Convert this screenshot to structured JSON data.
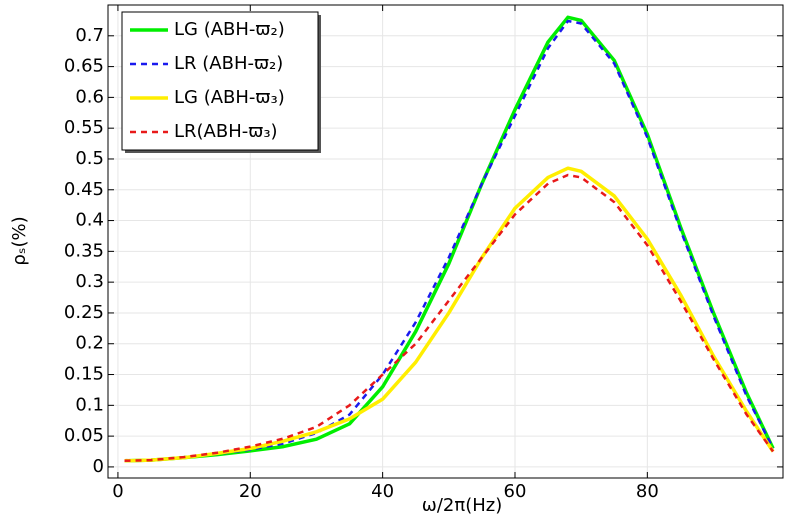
{
  "chart_data": {
    "type": "line",
    "xlabel": "ω/2π(Hz)",
    "ylabel": "ρₛ(%)",
    "x": [
      1,
      5,
      10,
      15,
      20,
      25,
      30,
      35,
      40,
      45,
      50,
      55,
      60,
      65,
      68,
      70,
      75,
      80,
      85,
      90,
      95,
      99
    ],
    "series": [
      {
        "name": "LG (ABH-ϖ₂)",
        "color": "#00ee00",
        "dashed": false,
        "values": [
          0.01,
          0.011,
          0.015,
          0.02,
          0.026,
          0.033,
          0.045,
          0.07,
          0.13,
          0.22,
          0.33,
          0.46,
          0.58,
          0.69,
          0.73,
          0.725,
          0.66,
          0.54,
          0.39,
          0.25,
          0.12,
          0.03
        ]
      },
      {
        "name": "LR (ABH-ϖ₂)",
        "color": "#1a1aee",
        "dashed": true,
        "values": [
          0.01,
          0.011,
          0.015,
          0.021,
          0.028,
          0.038,
          0.055,
          0.085,
          0.15,
          0.235,
          0.34,
          0.46,
          0.57,
          0.68,
          0.724,
          0.72,
          0.655,
          0.535,
          0.385,
          0.245,
          0.115,
          0.03
        ]
      },
      {
        "name": "LG (ABH-ϖ₃)",
        "color": "#ffee00",
        "dashed": false,
        "values": [
          0.01,
          0.011,
          0.015,
          0.022,
          0.03,
          0.042,
          0.057,
          0.078,
          0.11,
          0.17,
          0.25,
          0.34,
          0.42,
          0.47,
          0.485,
          0.48,
          0.44,
          0.37,
          0.28,
          0.18,
          0.09,
          0.025
        ]
      },
      {
        "name": "LR(ABH-ϖ₃)",
        "color": "#e81a1a",
        "dashed": true,
        "values": [
          0.01,
          0.011,
          0.016,
          0.023,
          0.033,
          0.046,
          0.065,
          0.1,
          0.15,
          0.2,
          0.27,
          0.34,
          0.41,
          0.46,
          0.474,
          0.47,
          0.43,
          0.36,
          0.27,
          0.175,
          0.085,
          0.025
        ]
      }
    ],
    "xlim": [
      -1.5,
      100.5
    ],
    "xticks": [
      0,
      20,
      40,
      60,
      80
    ],
    "ylim": [
      -0.018,
      0.75
    ],
    "yticks": [
      0,
      0.05,
      0.1,
      0.15,
      0.2,
      0.25,
      0.3,
      0.35,
      0.4,
      0.45,
      0.5,
      0.55,
      0.6,
      0.65,
      0.7
    ],
    "grid": true,
    "legend": "upper-left"
  }
}
